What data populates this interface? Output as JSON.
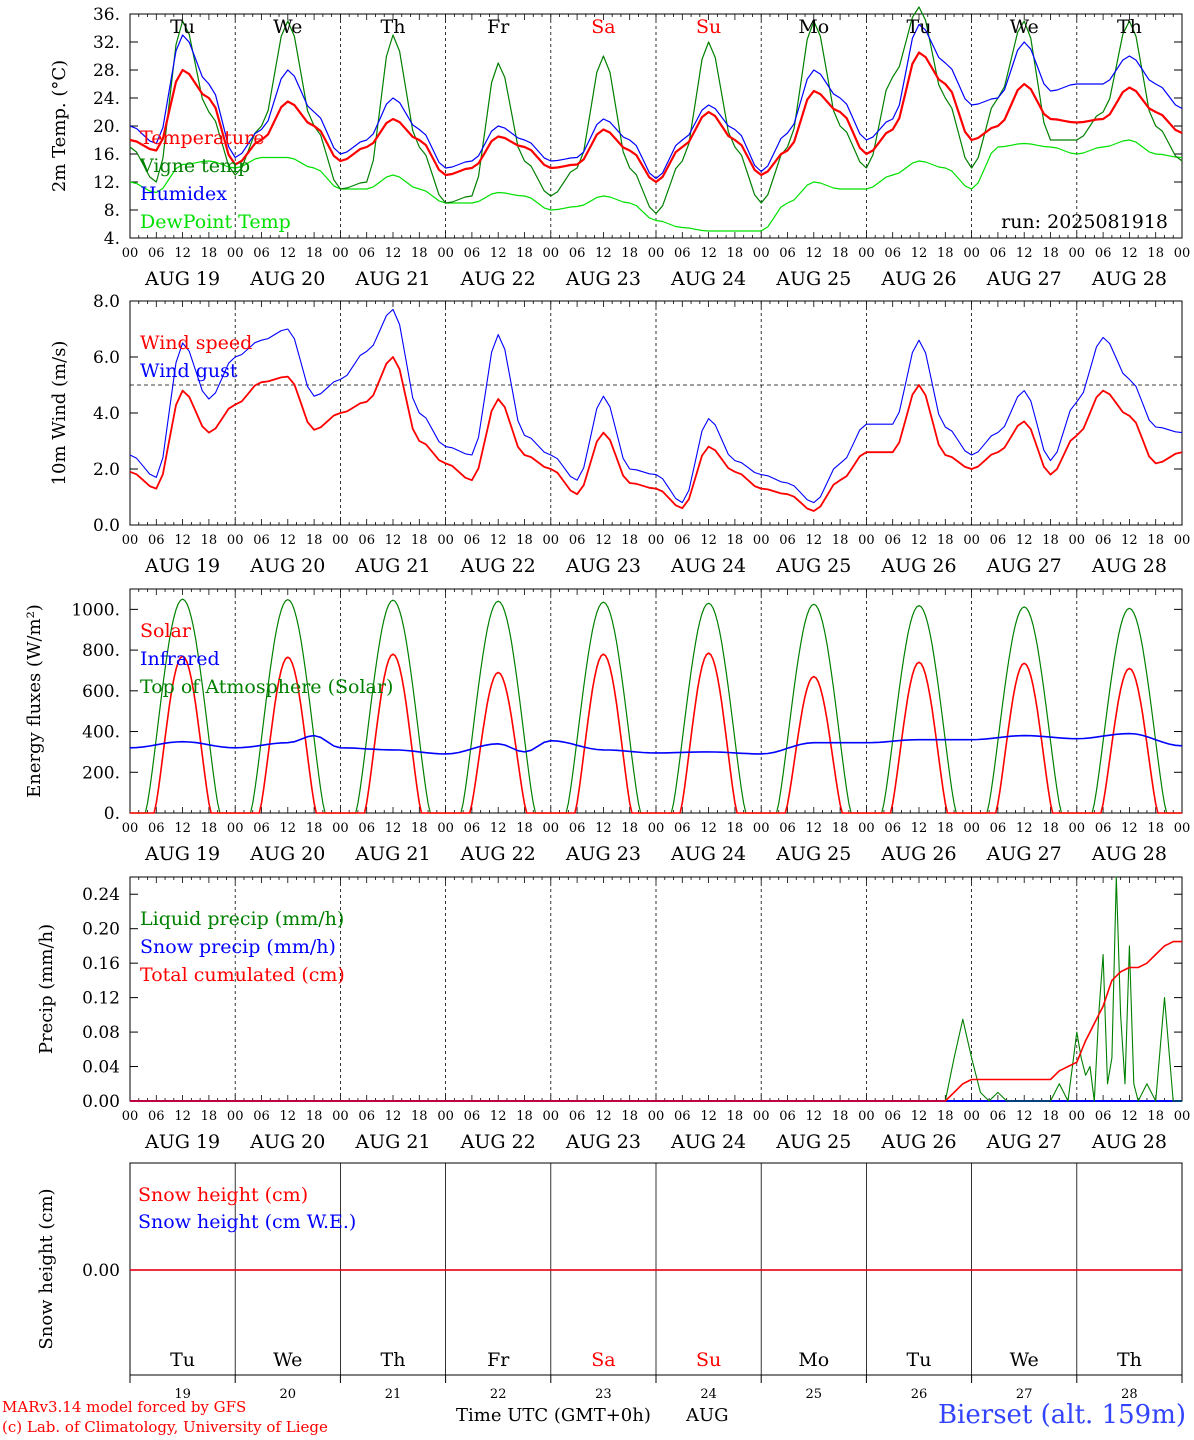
{
  "day_abbr": [
    "Tu",
    "We",
    "Th",
    "Fr",
    "Sa",
    "Su",
    "Mo",
    "Tu",
    "We",
    "Th"
  ],
  "weekend_days": [
    4,
    5
  ],
  "date_labels": [
    "AUG 19",
    "AUG 20",
    "AUG 21",
    "AUG 22",
    "AUG 23",
    "AUG 24",
    "AUG 25",
    "AUG 26",
    "AUG 27",
    "AUG 28"
  ],
  "day_numbers": [
    "19",
    "20",
    "21",
    "22",
    "23",
    "24",
    "25",
    "26",
    "27",
    "28"
  ],
  "hour_ticks": [
    "00",
    "06",
    "12",
    "18"
  ],
  "last_hour_tick": "00",
  "run_label": "run: 2025081918",
  "x_axis_title": "Time UTC (GMT+0h)",
  "month_label": "AUG",
  "credit_line1": "MARv3.14 model forced by GFS",
  "credit_line2": "(c) Lab. of Climatology, University of Liege",
  "station": "Bierset (alt. 159m)",
  "colors": {
    "red": "#ff0000",
    "green": "#008000",
    "blue": "#0000ff",
    "light_green": "#00e000",
    "weekend": "#ff0000",
    "station": "#3344ff"
  },
  "chart_data": [
    {
      "type": "line",
      "ylabel": "2m Temp. (°C)",
      "ylim": [
        4,
        36
      ],
      "yticks": [
        "4.",
        "8.",
        "12.",
        "16.",
        "20.",
        "24.",
        "28.",
        "32.",
        "36."
      ],
      "x_hours": [
        0,
        6,
        12,
        18,
        24,
        30,
        36,
        42,
        48,
        54,
        60,
        66,
        72,
        78,
        84,
        90,
        96,
        102,
        108,
        114,
        120,
        126,
        132,
        138,
        144,
        150,
        156,
        162,
        168,
        174,
        180,
        186,
        192,
        198,
        204,
        210,
        216,
        222,
        228,
        234,
        240
      ],
      "series": [
        {
          "name": "Temperature",
          "color": "red",
          "values": [
            18,
            16.5,
            28,
            24,
            14.5,
            18,
            23.5,
            20,
            15,
            17,
            21,
            18,
            13,
            14,
            18.5,
            17,
            14,
            14.5,
            19.5,
            16.5,
            12,
            17,
            22,
            18,
            13,
            16.5,
            25,
            22,
            16,
            19.5,
            30.5,
            26,
            18,
            20,
            26,
            21,
            20.5,
            21,
            25.5,
            22,
            19
          ]
        },
        {
          "name": "Vigne temp",
          "color": "green",
          "values": [
            17,
            12,
            35,
            22,
            13,
            20,
            35,
            20,
            11,
            12,
            33,
            17,
            9,
            10,
            29,
            15,
            10,
            14,
            30,
            14,
            7.5,
            15,
            32,
            17,
            9,
            17,
            35,
            20,
            14,
            27,
            37,
            24,
            14,
            24,
            35,
            18,
            18,
            22,
            35,
            20,
            15
          ]
        },
        {
          "name": "Humidex",
          "color": "blue",
          "values": [
            20,
            17.5,
            33,
            26,
            15.5,
            19.5,
            28,
            22,
            16,
            18,
            24,
            19.5,
            14,
            15,
            20,
            18,
            15,
            15.5,
            21,
            18,
            12.5,
            18,
            23,
            19.5,
            13.5,
            19,
            28,
            24,
            18,
            21,
            34.5,
            29,
            23,
            24,
            32,
            25,
            26,
            26,
            30,
            26,
            22.5
          ]
        },
        {
          "name": "DewPoint Temp",
          "color": "light_green",
          "values": [
            12,
            10.5,
            14.5,
            15,
            14,
            15.5,
            15.5,
            14,
            11,
            11,
            13,
            11,
            9,
            9,
            10.5,
            10,
            8,
            8.5,
            10,
            9,
            6.5,
            5.5,
            5,
            5,
            5,
            9,
            12,
            11,
            11,
            13,
            15,
            14,
            11,
            17,
            17.5,
            17,
            16,
            17,
            18,
            16,
            15.5
          ]
        }
      ]
    },
    {
      "type": "line",
      "ylabel": "10m Wind (m/s)",
      "ylim": [
        0,
        8
      ],
      "yticks": [
        "0.0",
        "2.0",
        "4.0",
        "6.0",
        "8.0"
      ],
      "reference_line": 5,
      "x_hours": [
        0,
        6,
        12,
        18,
        24,
        30,
        36,
        42,
        48,
        54,
        60,
        66,
        72,
        78,
        84,
        90,
        96,
        102,
        108,
        114,
        120,
        126,
        132,
        138,
        144,
        150,
        156,
        162,
        168,
        174,
        180,
        186,
        192,
        198,
        204,
        210,
        216,
        222,
        228,
        234,
        240
      ],
      "series": [
        {
          "name": "Wind speed",
          "color": "red",
          "values": [
            1.9,
            1.3,
            4.8,
            3.3,
            4.3,
            5.1,
            5.3,
            3.4,
            4,
            4.4,
            6,
            3,
            2.2,
            1.6,
            4.5,
            2.5,
            2,
            1.1,
            3.3,
            1.5,
            1.3,
            0.6,
            2.8,
            1.9,
            1.3,
            1.1,
            0.5,
            1.6,
            2.6,
            2.6,
            5,
            2.5,
            2,
            2.6,
            3.7,
            1.8,
            3.2,
            4.8,
            3.9,
            2.2,
            2.6
          ]
        },
        {
          "name": "Wind gust",
          "color": "blue",
          "values": [
            2.5,
            1.7,
            6.5,
            4.5,
            6,
            6.6,
            7,
            4.6,
            5.2,
            6.2,
            7.7,
            4,
            2.8,
            2.5,
            6.8,
            3.2,
            2.5,
            1.6,
            4.6,
            2,
            1.8,
            0.8,
            3.8,
            2.3,
            1.8,
            1.5,
            0.8,
            2.2,
            3.6,
            3.6,
            6.6,
            3.5,
            2.5,
            3.3,
            4.8,
            2.3,
            4.4,
            6.7,
            5.2,
            3.5,
            3.3
          ]
        }
      ]
    },
    {
      "type": "line",
      "ylabel": "Energy fluxes (W/m²)",
      "ylim": [
        0,
        1100
      ],
      "yticks": [
        "0.",
        "200.",
        "400.",
        "600.",
        "800.",
        "1000."
      ],
      "series": [
        {
          "name": "Solar",
          "color": "red",
          "day_peaks": [
            770,
            765,
            780,
            690,
            780,
            785,
            670,
            740,
            735,
            710
          ]
        },
        {
          "name": "Infrared",
          "color": "blue",
          "x_hours": [
            0,
            12,
            24,
            36,
            42,
            48,
            60,
            72,
            84,
            90,
            96,
            108,
            120,
            132,
            144,
            156,
            168,
            180,
            192,
            204,
            216,
            228,
            240
          ],
          "values": [
            320,
            350,
            320,
            345,
            380,
            320,
            310,
            290,
            340,
            300,
            355,
            310,
            295,
            300,
            290,
            345,
            345,
            360,
            360,
            380,
            365,
            390,
            330
          ]
        },
        {
          "name": "Top of Atmosphere (Solar)",
          "color": "green",
          "day_peaks": [
            1050,
            1048,
            1045,
            1040,
            1035,
            1030,
            1025,
            1018,
            1012,
            1005
          ]
        }
      ]
    },
    {
      "type": "line",
      "ylabel": "Precip (mm/h)",
      "ylim": [
        0,
        0.26
      ],
      "yticks": [
        "0.00",
        "0.04",
        "0.08",
        "0.12",
        "0.16",
        "0.20",
        "0.24"
      ],
      "series": [
        {
          "name": "Liquid precip (mm/h)",
          "color": "green",
          "x_hours": [
            0,
            186,
            188,
            190,
            192,
            194,
            196,
            198,
            200,
            202,
            204,
            206,
            208,
            210,
            212,
            214,
            216,
            217,
            218,
            219,
            220,
            221,
            222,
            223,
            224,
            225,
            226,
            227,
            228,
            229,
            230,
            232,
            234,
            236,
            238,
            240
          ],
          "values": [
            0,
            0,
            0.05,
            0.095,
            0.05,
            0.01,
            0,
            0.01,
            0,
            0,
            0,
            0,
            0,
            0,
            0.02,
            0,
            0.08,
            0.05,
            0.03,
            0.04,
            0,
            0.1,
            0.17,
            0.02,
            0.05,
            0.26,
            0.1,
            0.02,
            0.18,
            0.02,
            0,
            0.02,
            0,
            0.12,
            0,
            0
          ]
        },
        {
          "name": "Snow precip (mm/h)",
          "color": "blue",
          "x_hours": [
            0,
            240
          ],
          "values": [
            0,
            0
          ]
        },
        {
          "name": "Total cumulated (cm)",
          "color": "red",
          "x_hours": [
            0,
            186,
            188,
            190,
            192,
            210,
            212,
            214,
            216,
            218,
            220,
            222,
            224,
            226,
            228,
            230,
            232,
            234,
            236,
            238,
            240
          ],
          "values": [
            0,
            0,
            0.01,
            0.02,
            0.025,
            0.025,
            0.035,
            0.04,
            0.045,
            0.07,
            0.09,
            0.11,
            0.14,
            0.15,
            0.155,
            0.155,
            0.16,
            0.17,
            0.18,
            0.185,
            0.185
          ]
        }
      ]
    },
    {
      "type": "line",
      "ylabel": "Snow height (cm)",
      "yticks": [
        "0.00"
      ],
      "series": [
        {
          "name": "Snow height (cm)",
          "color": "red",
          "x_hours": [
            0,
            240
          ],
          "values": [
            0,
            0
          ]
        },
        {
          "name": "Snow height (cm W.E.)",
          "color": "blue",
          "x_hours": [
            0,
            240
          ],
          "values": [
            0,
            0
          ]
        }
      ]
    }
  ]
}
